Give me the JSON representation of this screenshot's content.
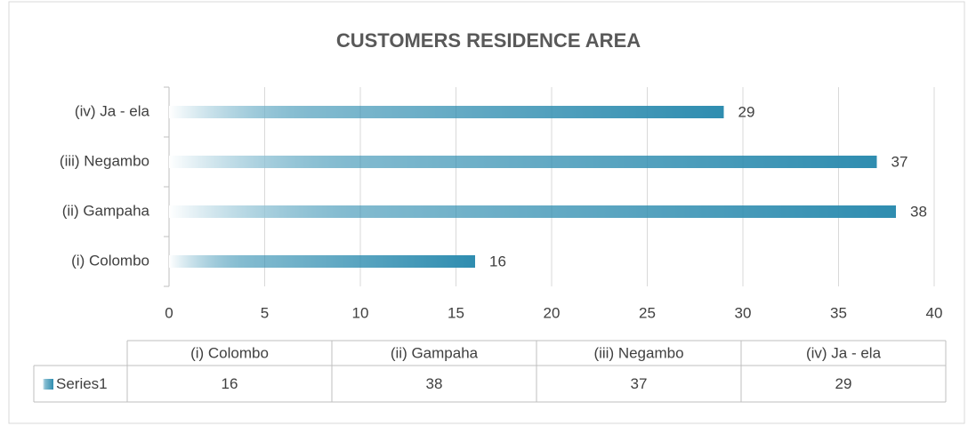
{
  "chart_data": {
    "type": "bar",
    "orientation": "horizontal",
    "title": "CUSTOMERS RESIDENCE AREA",
    "categories": [
      "(i)   Colombo",
      "(ii)   Gampaha",
      "(iii)   Negambo",
      "(iv)   Ja - ela"
    ],
    "series": [
      {
        "name": "Series1",
        "color": "#2f8db0",
        "values": [
          16,
          38,
          37,
          29
        ]
      }
    ],
    "xlim": [
      0,
      40
    ],
    "xticks": [
      0,
      5,
      10,
      15,
      20,
      25,
      30,
      35,
      40
    ],
    "grid": true,
    "data_table": true
  }
}
